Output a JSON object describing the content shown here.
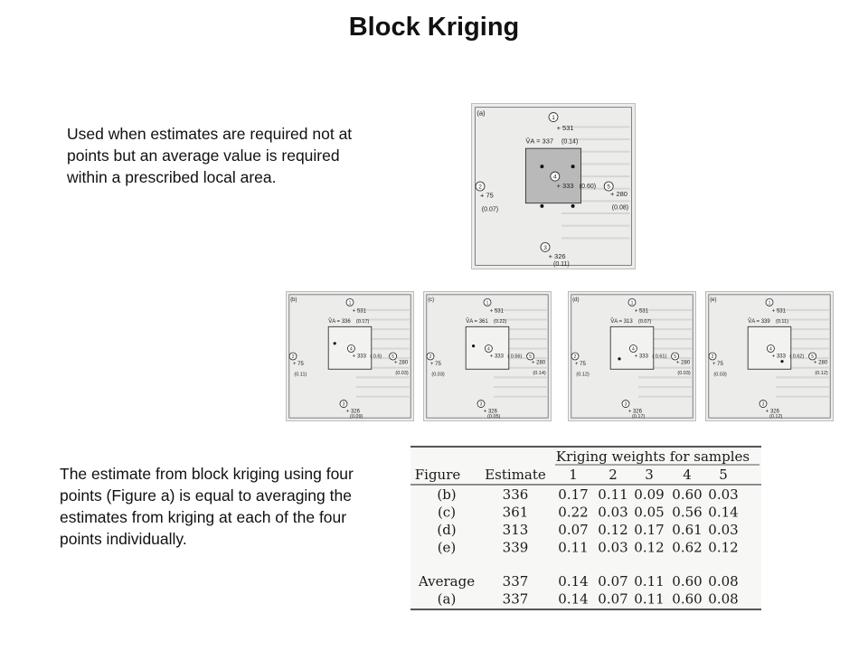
{
  "title": "Block Kriging",
  "text": {
    "para1": "Used when estimates are required not at points but an average value is required within a prescribed local area.",
    "para2": "The estimate from block kriging using four points (Figure a) is equal to averaging the estimates from kriging at each of the four points individually."
  },
  "figures": [
    {
      "label": "(a)",
      "estimate": "V̂A = 337",
      "points": [
        {
          "id": "1",
          "value": "+ 531",
          "weight": "(0.14)"
        },
        {
          "id": "2",
          "value": "+ 75",
          "weight": "(0.07)"
        },
        {
          "id": "3",
          "value": "+ 326",
          "weight": "(0.11)"
        },
        {
          "id": "4",
          "value": "+ 333",
          "weight": "(0.60)"
        },
        {
          "id": "5",
          "value": "+ 280",
          "weight": "(0.08)"
        }
      ]
    },
    {
      "label": "(b)",
      "estimate": "V̂A = 336",
      "points": [
        {
          "id": "1",
          "value": "+ 531",
          "weight": "(0.17)"
        },
        {
          "id": "2",
          "value": "+ 75",
          "weight": "(0.11)"
        },
        {
          "id": "3",
          "value": "+ 326",
          "weight": "(0.09)"
        },
        {
          "id": "4",
          "value": "+ 333",
          "weight": "( 0.6)"
        },
        {
          "id": "5",
          "value": "+ 280",
          "weight": "(0.03)"
        }
      ]
    },
    {
      "label": "(c)",
      "estimate": "V̂A = 361",
      "points": [
        {
          "id": "1",
          "value": "+ 531",
          "weight": "(0.22)"
        },
        {
          "id": "2",
          "value": "+ 75",
          "weight": "(0.03)"
        },
        {
          "id": "3",
          "value": "+ 326",
          "weight": "(0.05)"
        },
        {
          "id": "4",
          "value": "+ 333",
          "weight": "( 0.56)"
        },
        {
          "id": "5",
          "value": "+ 280",
          "weight": "(0.14)"
        }
      ]
    },
    {
      "label": "(d)",
      "estimate": "V̂A = 313",
      "points": [
        {
          "id": "1",
          "value": "+ 531",
          "weight": "(0.07)"
        },
        {
          "id": "2",
          "value": "+ 75",
          "weight": "(0.12)"
        },
        {
          "id": "3",
          "value": "+ 326",
          "weight": "(0.17)"
        },
        {
          "id": "4",
          "value": "+ 333",
          "weight": "( 0.61)"
        },
        {
          "id": "5",
          "value": "+ 280",
          "weight": "(0.03)"
        }
      ]
    },
    {
      "label": "(e)",
      "estimate": "V̂A = 339",
      "points": [
        {
          "id": "1",
          "value": "+ 531",
          "weight": "(0.11)"
        },
        {
          "id": "2",
          "value": "+ 75",
          "weight": "(0.03)"
        },
        {
          "id": "3",
          "value": "+ 326",
          "weight": "(0.12)"
        },
        {
          "id": "4",
          "value": "+ 333",
          "weight": "( 0.62)"
        },
        {
          "id": "5",
          "value": "+ 280",
          "weight": "(0.12)"
        }
      ]
    }
  ],
  "table": {
    "group_header": "Kriging weights for samples",
    "columns": [
      "Figure",
      "Estimate",
      "1",
      "2",
      "3",
      "4",
      "5"
    ],
    "rows": [
      [
        "(b)",
        "336",
        "0.17",
        "0.11",
        "0.09",
        "0.60",
        "0.03"
      ],
      [
        "(c)",
        "361",
        "0.22",
        "0.03",
        "0.05",
        "0.56",
        "0.14"
      ],
      [
        "(d)",
        "313",
        "0.07",
        "0.12",
        "0.17",
        "0.61",
        "0.03"
      ],
      [
        "(e)",
        "339",
        "0.11",
        "0.03",
        "0.12",
        "0.62",
        "0.12"
      ]
    ],
    "summary_rows": [
      [
        "Average",
        "337",
        "0.14",
        "0.07",
        "0.11",
        "0.60",
        "0.08"
      ],
      [
        "(a)",
        "337",
        "0.14",
        "0.07",
        "0.11",
        "0.60",
        "0.08"
      ]
    ]
  }
}
